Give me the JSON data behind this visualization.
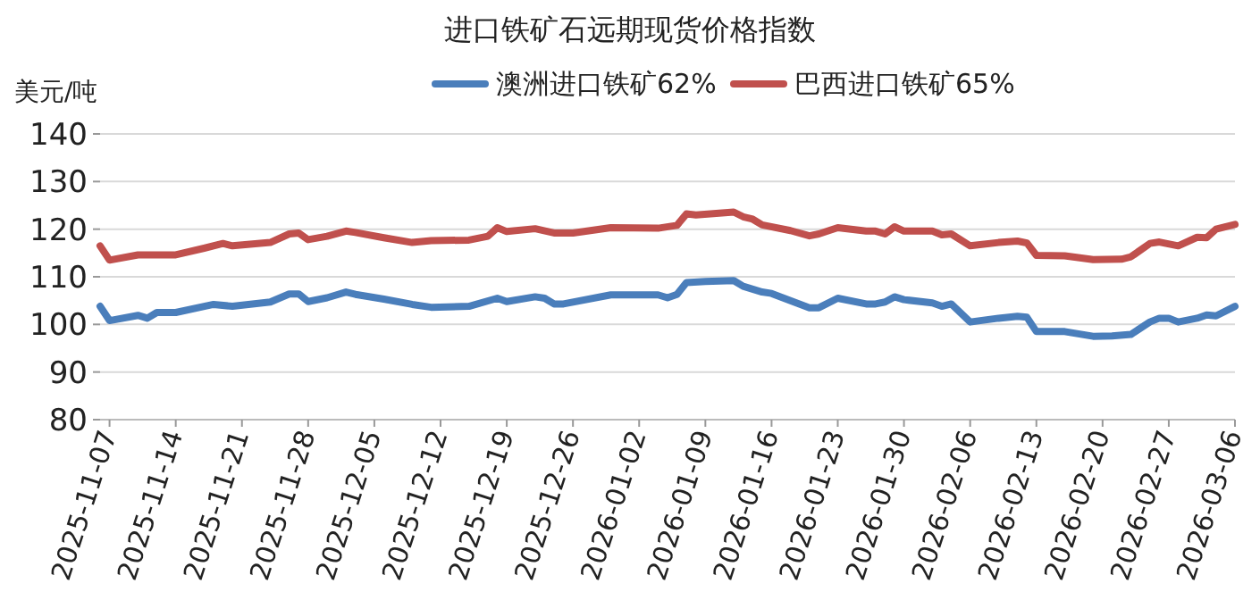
{
  "chart_data": {
    "type": "line",
    "title": "进口铁矿石远期现货价格指数",
    "ylabel": "美元/吨",
    "legend": "top",
    "grid": "y",
    "xlim": [
      "2025-11-06",
      "2026-03-06"
    ],
    "ylim": [
      80,
      140
    ],
    "yticks": [
      80,
      90,
      100,
      110,
      120,
      130,
      140
    ],
    "xticks": [
      "2025-11-07",
      "2025-11-14",
      "2025-11-21",
      "2025-11-28",
      "2025-12-05",
      "2025-12-12",
      "2025-12-19",
      "2025-12-26",
      "2026-01-02",
      "2026-01-09",
      "2026-01-16",
      "2026-01-23",
      "2026-01-30",
      "2026-02-06",
      "2026-02-13",
      "2026-02-20",
      "2026-02-27",
      "2026-03-06"
    ],
    "series": [
      {
        "name": "澳洲进口铁矿62%",
        "color": "#4a7ebb",
        "x": [
          "2025-11-06",
          "2025-11-07",
          "2025-11-10",
          "2025-11-11",
          "2025-11-12",
          "2025-11-14",
          "2025-11-18",
          "2025-11-20",
          "2025-11-24",
          "2025-11-26",
          "2025-11-27",
          "2025-11-28",
          "2025-11-30",
          "2025-12-02",
          "2025-12-03",
          "2025-12-06",
          "2025-12-09",
          "2025-12-11",
          "2025-12-15",
          "2025-12-18",
          "2025-12-19",
          "2025-12-22",
          "2025-12-23",
          "2025-12-24",
          "2025-12-25",
          "2025-12-30",
          "2026-01-04",
          "2026-01-05",
          "2026-01-06",
          "2026-01-07",
          "2026-01-09",
          "2026-01-12",
          "2026-01-13",
          "2026-01-15",
          "2026-01-16",
          "2026-01-18",
          "2026-01-20",
          "2026-01-21",
          "2026-01-23",
          "2026-01-26",
          "2026-01-27",
          "2026-01-28",
          "2026-01-29",
          "2026-01-30",
          "2026-02-02",
          "2026-02-03",
          "2026-02-04",
          "2026-02-06",
          "2026-02-09",
          "2026-02-11",
          "2026-02-12",
          "2026-02-13",
          "2026-02-16",
          "2026-02-19",
          "2026-02-21",
          "2026-02-23",
          "2026-02-25",
          "2026-02-26",
          "2026-02-27",
          "2026-02-28",
          "2026-03-02",
          "2026-03-03",
          "2026-03-04",
          "2026-03-06"
        ],
        "values": [
          103.8,
          100.8,
          101.9,
          101.3,
          102.5,
          102.5,
          104.2,
          103.8,
          104.7,
          106.4,
          106.4,
          104.8,
          105.6,
          106.8,
          106.3,
          105.3,
          104.2,
          103.6,
          103.8,
          105.5,
          104.8,
          105.8,
          105.5,
          104.3,
          104.3,
          106.2,
          106.2,
          105.6,
          106.3,
          108.8,
          109,
          109.2,
          108,
          106.8,
          106.5,
          105,
          103.5,
          103.5,
          105.5,
          104.3,
          104.3,
          104.7,
          105.8,
          105.2,
          104.5,
          103.8,
          104.3,
          100.5,
          101.3,
          101.7,
          101.5,
          98.5,
          98.5,
          97.5,
          97.6,
          97.9,
          100.5,
          101.3,
          101.3,
          100.5,
          101.3,
          102,
          101.8,
          103.8
        ]
      },
      {
        "name": "巴西进口铁矿65%",
        "color": "#c0504d",
        "x": [
          "2025-11-06",
          "2025-11-07",
          "2025-11-10",
          "2025-11-14",
          "2025-11-17",
          "2025-11-19",
          "2025-11-20",
          "2025-11-24",
          "2025-11-26",
          "2025-11-27",
          "2025-11-28",
          "2025-11-30",
          "2025-12-02",
          "2025-12-03",
          "2025-12-06",
          "2025-12-09",
          "2025-12-11",
          "2025-12-15",
          "2025-12-17",
          "2025-12-18",
          "2025-12-19",
          "2025-12-22",
          "2025-12-24",
          "2025-12-26",
          "2025-12-30",
          "2026-01-04",
          "2026-01-06",
          "2026-01-07",
          "2026-01-08",
          "2026-01-12",
          "2026-01-13",
          "2026-01-14",
          "2026-01-15",
          "2026-01-18",
          "2026-01-20",
          "2026-01-21",
          "2026-01-23",
          "2026-01-26",
          "2026-01-27",
          "2026-01-28",
          "2026-01-29",
          "2026-01-30",
          "2026-02-02",
          "2026-02-03",
          "2026-02-04",
          "2026-02-06",
          "2026-02-09",
          "2026-02-11",
          "2026-02-12",
          "2026-02-13",
          "2026-02-16",
          "2026-02-19",
          "2026-02-22",
          "2026-02-23",
          "2026-02-25",
          "2026-02-26",
          "2026-02-28",
          "2026-03-02",
          "2026-03-03",
          "2026-03-04",
          "2026-03-06"
        ],
        "values": [
          116.5,
          113.5,
          114.6,
          114.6,
          116,
          117,
          116.5,
          117.2,
          119,
          119.2,
          117.8,
          118.5,
          119.6,
          119.3,
          118.2,
          117.2,
          117.6,
          117.7,
          118.5,
          120.3,
          119.5,
          120.1,
          119.2,
          119.2,
          120.3,
          120.2,
          120.8,
          123.2,
          123,
          123.6,
          122.6,
          122.1,
          120.9,
          119.7,
          118.6,
          119,
          120.3,
          119.6,
          119.6,
          119,
          120.5,
          119.6,
          119.6,
          118.8,
          119,
          116.5,
          117.2,
          117.5,
          117.1,
          114.5,
          114.4,
          113.6,
          113.7,
          114.2,
          117,
          117.3,
          116.5,
          118.3,
          118.2,
          120,
          121
        ]
      }
    ]
  }
}
